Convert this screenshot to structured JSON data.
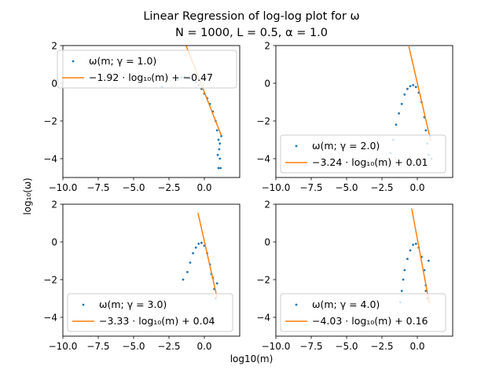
{
  "figure": {
    "title_line1": "Linear Regression of log-log plot for ω",
    "title_line2": "N = 1000, L = 0.5, α = 1.0",
    "ylabel": "log₁₀(ω)",
    "xlabel": "log10(m)",
    "colors": {
      "scatter": "#1f77b4",
      "fit": "#ff7f0e"
    }
  },
  "chart_data": [
    {
      "type": "scatter",
      "xlim": [
        -10,
        2.5
      ],
      "ylim": [
        -5,
        2
      ],
      "xticks": [
        -10.0,
        -7.5,
        -5.0,
        -2.5,
        0.0
      ],
      "xtick_labels": [
        "−10.0",
        "−7.5",
        "−5.0",
        "−2.5",
        "0.0"
      ],
      "yticks": [
        2,
        0,
        -2,
        -4
      ],
      "ytick_labels": [
        "2",
        "0",
        "−2",
        "−4"
      ],
      "legend_location": "upper-left",
      "series": [
        {
          "name": "ω(m; γ = 1.0)",
          "kind": "scatter",
          "points": [
            [
              -3.0,
              -0.2
            ],
            [
              -1.9,
              0.2
            ],
            [
              -1.6,
              0.3
            ],
            [
              -1.4,
              0.35
            ],
            [
              -1.2,
              0.3
            ],
            [
              -1.0,
              0.25
            ],
            [
              -0.8,
              0.15
            ],
            [
              -0.6,
              0.05
            ],
            [
              -0.4,
              -0.1
            ],
            [
              -0.2,
              -0.3
            ],
            [
              0.0,
              -0.55
            ],
            [
              0.2,
              -0.8
            ],
            [
              0.4,
              -1.1
            ],
            [
              0.6,
              -1.5
            ],
            [
              0.8,
              -2.0
            ],
            [
              0.9,
              -2.5
            ],
            [
              1.0,
              -3.0
            ],
            [
              1.05,
              -3.5
            ],
            [
              1.1,
              -4.0
            ],
            [
              1.0,
              -4.5
            ],
            [
              1.15,
              -4.5
            ],
            [
              0.95,
              -3.8
            ],
            [
              1.1,
              -3.2
            ],
            [
              1.2,
              -2.8
            ]
          ]
        },
        {
          "name": "−1.92 · log₁₀(m) + −0.47",
          "kind": "line",
          "slope": -1.92,
          "intercept": -0.47,
          "x_range": [
            -1.3,
            1.2
          ]
        }
      ]
    },
    {
      "type": "scatter",
      "xlim": [
        -10,
        2.5
      ],
      "ylim": [
        -5,
        2
      ],
      "xticks": [
        -10.0,
        -7.5,
        -5.0,
        -2.5,
        0.0
      ],
      "xtick_labels": [
        "−10.0",
        "−7.5",
        "−5.0",
        "−2.5",
        "0.0"
      ],
      "yticks": [
        2,
        0,
        -2,
        -4
      ],
      "ytick_labels": [
        "2",
        "0",
        "−2",
        "−4"
      ],
      "legend_location": "lower-right",
      "series": [
        {
          "name": "ω(m; γ = 2.0)",
          "kind": "scatter",
          "points": [
            [
              -1.9,
              -3.7
            ],
            [
              -1.7,
              -3.0
            ],
            [
              -1.5,
              -2.2
            ],
            [
              -1.3,
              -1.6
            ],
            [
              -1.1,
              -1.1
            ],
            [
              -0.9,
              -0.6
            ],
            [
              -0.7,
              -0.3
            ],
            [
              -0.5,
              -0.15
            ],
            [
              -0.3,
              -0.1
            ],
            [
              -0.1,
              -0.2
            ],
            [
              0.1,
              -0.5
            ],
            [
              0.3,
              -1.0
            ],
            [
              0.5,
              -1.8
            ],
            [
              0.6,
              -2.5
            ],
            [
              0.7,
              -3.2
            ],
            [
              0.8,
              -3.8
            ],
            [
              1.0,
              -4.0
            ],
            [
              0.9,
              -2.8
            ]
          ]
        },
        {
          "name": "−3.24 · log₁₀(m) + 0.01",
          "kind": "line",
          "slope": -3.24,
          "intercept": 0.01,
          "x_range": [
            -0.6,
            0.95
          ]
        }
      ]
    },
    {
      "type": "scatter",
      "xlim": [
        -10,
        2.5
      ],
      "ylim": [
        -5,
        2
      ],
      "xticks": [
        -10.0,
        -7.5,
        -5.0,
        -2.5,
        0.0
      ],
      "xtick_labels": [
        "−10.0",
        "−7.5",
        "−5.0",
        "−2.5",
        "0.0"
      ],
      "yticks": [
        2,
        0,
        -2,
        -4
      ],
      "ytick_labels": [
        "2",
        "0",
        "−2",
        "−4"
      ],
      "legend_location": "lower-left",
      "series": [
        {
          "name": "ω(m; γ = 3.0)",
          "kind": "scatter",
          "points": [
            [
              -1.5,
              -2.0
            ],
            [
              -1.2,
              -1.6
            ],
            [
              -1.0,
              -1.1
            ],
            [
              -0.8,
              -0.6
            ],
            [
              -0.6,
              -0.3
            ],
            [
              -0.4,
              -0.1
            ],
            [
              -0.2,
              -0.05
            ],
            [
              0.0,
              -0.2
            ],
            [
              0.2,
              -0.6
            ],
            [
              0.4,
              -1.2
            ],
            [
              0.6,
              -1.9
            ],
            [
              0.7,
              -2.5
            ],
            [
              0.8,
              -3.0
            ],
            [
              0.5,
              -1.7
            ],
            [
              0.9,
              -2.2
            ]
          ]
        },
        {
          "name": "−3.33 · log₁₀(m) + 0.04",
          "kind": "line",
          "slope": -3.33,
          "intercept": 0.04,
          "x_range": [
            -0.45,
            0.9
          ]
        }
      ]
    },
    {
      "type": "scatter",
      "xlim": [
        -10,
        2.5
      ],
      "ylim": [
        -5,
        2
      ],
      "xticks": [
        -10.0,
        -7.5,
        -5.0,
        -2.5,
        0.0
      ],
      "xtick_labels": [
        "−10.0",
        "−7.5",
        "−5.0",
        "−2.5",
        "0.0"
      ],
      "yticks": [
        2,
        0,
        -2,
        -4
      ],
      "ytick_labels": [
        "2",
        "0",
        "−2",
        "−4"
      ],
      "legend_location": "lower-right",
      "series": [
        {
          "name": "ω(m; γ = 4.0)",
          "kind": "scatter",
          "points": [
            [
              -1.2,
              -3.2
            ],
            [
              -1.1,
              -2.6
            ],
            [
              -1.0,
              -2.0
            ],
            [
              -0.9,
              -1.5
            ],
            [
              -0.7,
              -0.9
            ],
            [
              -0.5,
              -0.45
            ],
            [
              -0.3,
              -0.15
            ],
            [
              -0.1,
              -0.1
            ],
            [
              0.1,
              -0.3
            ],
            [
              0.3,
              -0.8
            ],
            [
              0.5,
              -1.5
            ],
            [
              0.6,
              -2.3
            ],
            [
              0.7,
              -3.0
            ],
            [
              0.6,
              -2.6
            ],
            [
              0.8,
              -1.0
            ]
          ]
        },
        {
          "name": "−4.03 · log₁₀(m) + 0.16",
          "kind": "line",
          "slope": -4.03,
          "intercept": 0.16,
          "x_range": [
            -0.4,
            0.85
          ]
        }
      ]
    }
  ]
}
